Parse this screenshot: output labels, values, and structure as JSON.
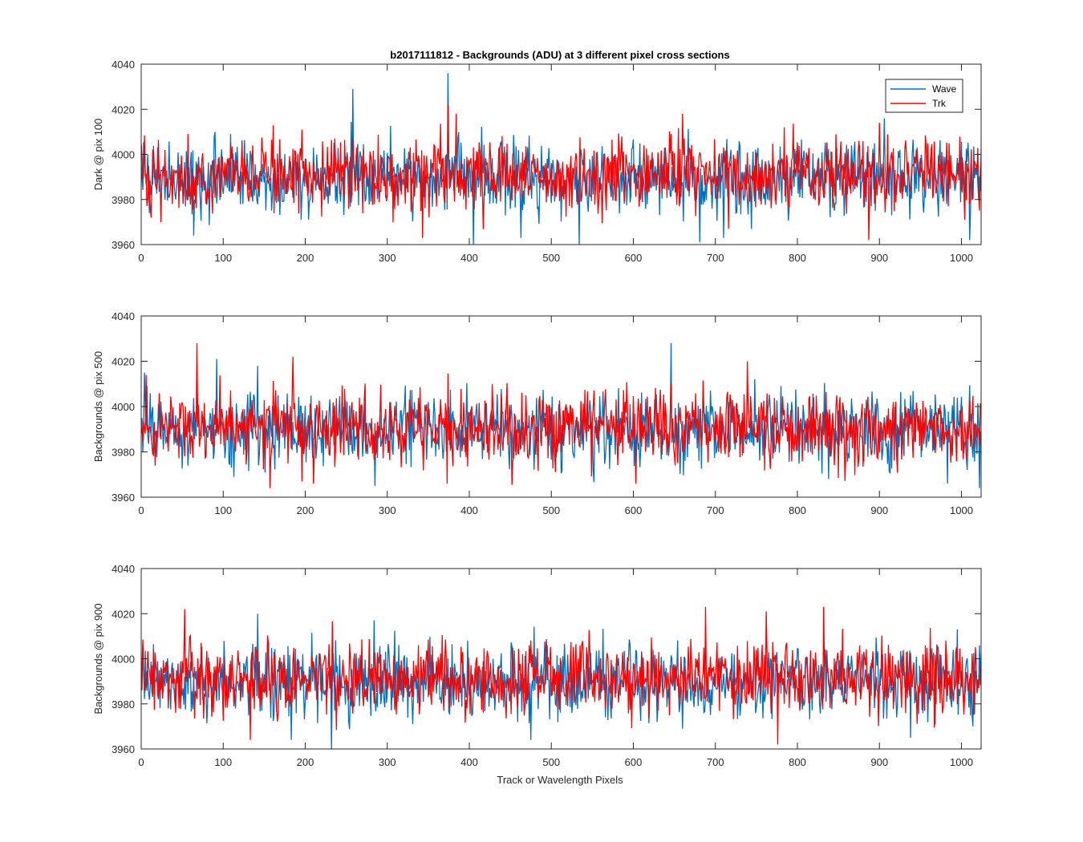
{
  "figure": {
    "title": "b2017111812 - Backgrounds (ADU) at 3 different pixel cross sections",
    "xlabel": "Track or Wavelength Pixels"
  },
  "colors": {
    "Wave": "#0072BD",
    "Trk": "#FF0000",
    "axis": "#262626",
    "background": "#ffffff"
  },
  "chart_data": [
    {
      "type": "line",
      "title": "b2017111812 - Backgrounds (ADU) at 3 different pixel cross sections",
      "ylabel": "Dark @ pix 100",
      "xlabel": "",
      "xlim": [
        0,
        1024
      ],
      "ylim": [
        3960,
        4040
      ],
      "xticks": [
        0,
        100,
        200,
        300,
        400,
        500,
        600,
        700,
        800,
        900,
        1000
      ],
      "yticks": [
        3960,
        3980,
        4000,
        4020,
        4040
      ],
      "legend": {
        "placement": "top-right",
        "entries": [
          "Wave",
          "Trk"
        ]
      },
      "series": [
        {
          "name": "Wave",
          "baseline": 3990,
          "spikes": [
            [
              64,
              3964
            ],
            [
              258,
              4029
            ],
            [
              374,
              4036
            ],
            [
              405,
              3960
            ],
            [
              463,
              3963
            ],
            [
              534,
              3960
            ],
            [
              681,
              3961
            ],
            [
              710,
              3963
            ],
            [
              906,
              4016
            ],
            [
              1010,
              3962
            ]
          ]
        },
        {
          "name": "Trk",
          "baseline": 3991,
          "spikes": [
            [
              343,
              3963
            ],
            [
              374,
              4022
            ],
            [
              384,
              4018
            ],
            [
              660,
              4018
            ],
            [
              716,
              3967
            ],
            [
              887,
              3962
            ],
            [
              900,
              4014
            ],
            [
              1004,
              3971
            ]
          ]
        }
      ]
    },
    {
      "type": "line",
      "ylabel": "Backgrounds @ pix 500",
      "xlabel": "",
      "xlim": [
        0,
        1024
      ],
      "ylim": [
        3960,
        4040
      ],
      "xticks": [
        0,
        100,
        200,
        300,
        400,
        500,
        600,
        700,
        800,
        900,
        1000
      ],
      "yticks": [
        3960,
        3980,
        4000,
        4020,
        4040
      ],
      "series": [
        {
          "name": "Wave",
          "baseline": 3990,
          "spikes": [
            [
              4,
              4015
            ],
            [
              92,
              4021
            ],
            [
              113,
              3969
            ],
            [
              142,
              4018
            ],
            [
              285,
              3965
            ],
            [
              646,
              4028
            ],
            [
              838,
              3968
            ],
            [
              983,
              3966
            ],
            [
              1022,
              3964
            ]
          ]
        },
        {
          "name": "Trk",
          "baseline": 3991,
          "spikes": [
            [
              68,
              4028
            ],
            [
              157,
              3964
            ],
            [
              185,
              4022
            ],
            [
              210,
              3966
            ],
            [
              373,
              3966
            ],
            [
              603,
              3966
            ],
            [
              739,
              4020
            ],
            [
              1076,
              3976
            ]
          ]
        }
      ]
    },
    {
      "type": "line",
      "ylabel": "Backgrounds @ pix 900",
      "xlabel": "Track or Wavelength Pixels",
      "xlim": [
        0,
        1024
      ],
      "ylim": [
        3960,
        4040
      ],
      "xticks": [
        0,
        100,
        200,
        300,
        400,
        500,
        600,
        700,
        800,
        900,
        1000
      ],
      "yticks": [
        3960,
        3980,
        4000,
        4020,
        4040
      ],
      "series": [
        {
          "name": "Wave",
          "baseline": 3990,
          "spikes": [
            [
              142,
              4020
            ],
            [
              183,
              3964
            ],
            [
              232,
              3960
            ],
            [
              284,
              4017
            ],
            [
              475,
              3964
            ],
            [
              938,
              3965
            ],
            [
              1014,
              3970
            ]
          ]
        },
        {
          "name": "Trk",
          "baseline": 3991,
          "spikes": [
            [
              53,
              4022
            ],
            [
              133,
              3964
            ],
            [
              688,
              4023
            ],
            [
              762,
              4021
            ],
            [
              776,
              3962
            ],
            [
              832,
              4023
            ],
            [
              1026,
              3980
            ]
          ]
        }
      ]
    }
  ]
}
